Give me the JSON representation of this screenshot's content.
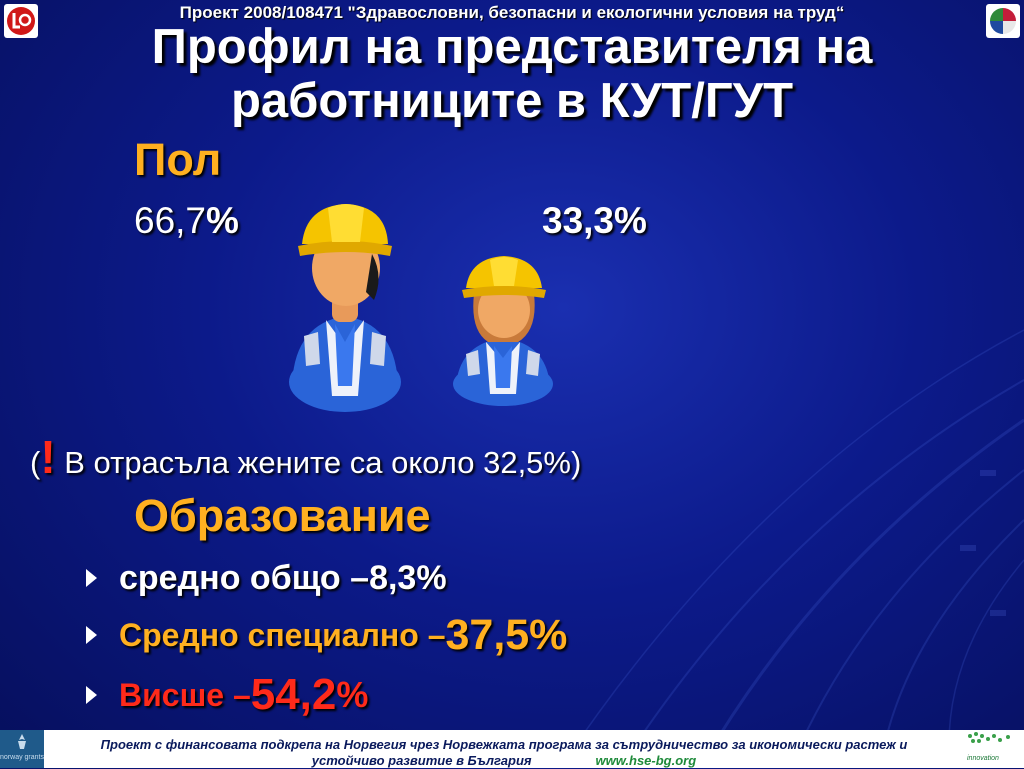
{
  "header": {
    "project": "Проект 2008/108471 \"Здравословни, безопасни и екологични условия на труд“",
    "title_line1": "Профил на представителя на",
    "title_line2": "работниците в КУТ/ГУТ"
  },
  "gender": {
    "heading": "Пол",
    "male_value": "66,7",
    "male_percent": "%",
    "female_value": "33,3%"
  },
  "note": {
    "open": "(",
    "exclamation": "!",
    "text": " В отрасъла жените са около 32,5%)"
  },
  "education": {
    "heading": "Образование",
    "items": [
      {
        "label": "средно общо – ",
        "value": "8,3%"
      },
      {
        "label": "Средно специално – ",
        "value": "37,5%"
      },
      {
        "label": "Висше – ",
        "value": "54,2",
        "suffix": "%"
      }
    ]
  },
  "footer": {
    "line1": "Проект с финансовата подкрепа на Норвегия чрез Норвежката програма за сътрудничество за икономически растеж и",
    "line2": "устойчиво развитие в България",
    "url": "www.hse-bg.org"
  },
  "logos": {
    "left_icon": "lo-logo-icon",
    "right_icon": "project-logo-icon",
    "norway": "norway grants",
    "innovation": "innovation"
  },
  "colors": {
    "background": "#0c1a8a",
    "heading": "#ffb020",
    "accent_red": "#ff2a1a",
    "helmet": "#f5c400",
    "vest": "#2a64d8"
  }
}
